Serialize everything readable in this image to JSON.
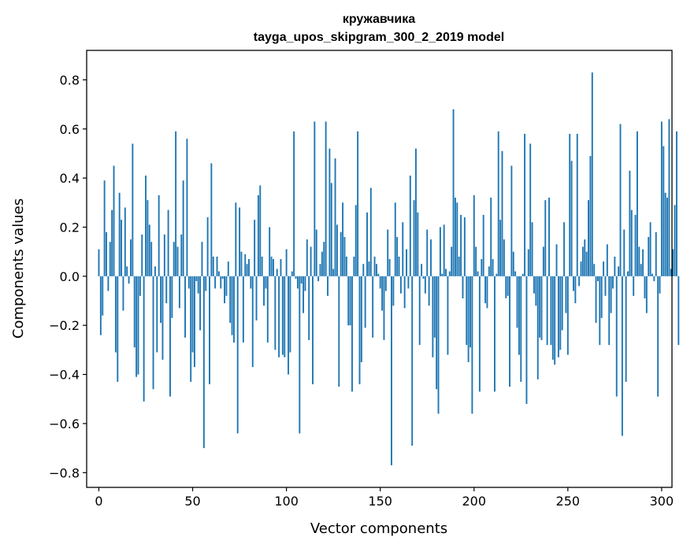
{
  "chart_data": {
    "type": "bar",
    "title_line1": "кружавчика",
    "title_line2": "tayga_upos_skipgram_300_2_2019 model",
    "xlabel": "Vector components",
    "ylabel": "Components values",
    "xlim": [
      -6.5,
      305.5
    ],
    "ylim": [
      -0.86,
      0.92
    ],
    "xticks": [
      0,
      50,
      100,
      150,
      200,
      250,
      300
    ],
    "xtick_labels": [
      "0",
      "50",
      "100",
      "150",
      "200",
      "250",
      "300"
    ],
    "yticks": [
      -0.8,
      -0.6,
      -0.4,
      -0.2,
      0.0,
      0.2,
      0.4,
      0.6,
      0.8
    ],
    "ytick_labels": [
      "−0.8",
      "−0.6",
      "−0.4",
      "−0.2",
      "0.0",
      "0.2",
      "0.4",
      "0.6",
      "0.8"
    ],
    "bar_color": "#1f77b4",
    "values": [
      0.11,
      -0.24,
      -0.16,
      0.39,
      0.18,
      -0.06,
      0.14,
      0.27,
      0.45,
      -0.31,
      -0.43,
      0.34,
      0.23,
      -0.14,
      0.28,
      0.04,
      -0.03,
      0.15,
      0.54,
      -0.29,
      -0.41,
      -0.4,
      -0.08,
      0.17,
      -0.51,
      0.41,
      0.31,
      0.21,
      0.14,
      -0.46,
      0.04,
      -0.31,
      0.33,
      -0.19,
      -0.34,
      0.17,
      -0.11,
      0.27,
      -0.49,
      -0.17,
      0.14,
      0.59,
      0.12,
      -0.13,
      0.17,
      0.39,
      -0.25,
      0.56,
      -0.05,
      -0.43,
      -0.31,
      -0.37,
      -0.02,
      -0.07,
      -0.22,
      0.14,
      -0.7,
      -0.06,
      0.24,
      -0.44,
      0.46,
      0.08,
      -0.05,
      0.08,
      0.02,
      -0.05,
      -0.01,
      -0.11,
      -0.08,
      0.06,
      -0.19,
      -0.24,
      -0.27,
      0.3,
      -0.64,
      0.28,
      0.1,
      -0.27,
      0.09,
      0.05,
      0.07,
      -0.05,
      -0.37,
      0.23,
      -0.18,
      0.33,
      0.37,
      0.08,
      -0.12,
      -0.05,
      -0.27,
      0.2,
      0.08,
      0.07,
      -0.3,
      0.03,
      -0.33,
      0.07,
      -0.32,
      -0.33,
      0.11,
      -0.4,
      -0.31,
      0.02,
      0.59,
      -0.01,
      -0.05,
      -0.64,
      -0.03,
      -0.15,
      -0.06,
      0.15,
      -0.26,
      0.12,
      -0.44,
      0.63,
      0.19,
      -0.02,
      0.05,
      0.1,
      0.14,
      0.63,
      -0.08,
      0.52,
      0.38,
      0.03,
      0.48,
      0.21,
      -0.45,
      0.18,
      0.3,
      0.16,
      0.08,
      -0.2,
      -0.2,
      -0.47,
      0.08,
      0.29,
      0.59,
      -0.44,
      -0.35,
      0.05,
      -0.21,
      0.26,
      0.06,
      0.36,
      -0.25,
      0.08,
      0.05,
      0.01,
      -0.05,
      -0.14,
      -0.26,
      -0.06,
      0.19,
      0.07,
      -0.77,
      -0.12,
      0.3,
      0.16,
      0.08,
      -0.07,
      0.22,
      -0.13,
      0.11,
      -0.05,
      0.41,
      -0.69,
      0.31,
      0.52,
      0.26,
      -0.28,
      0.05,
      -0.01,
      -0.07,
      0.19,
      -0.12,
      0.15,
      -0.33,
      -0.25,
      -0.46,
      -0.56,
      0.2,
      0.01,
      0.21,
      0.03,
      -0.32,
      0.02,
      0.12,
      0.68,
      0.32,
      0.3,
      0.08,
      0.25,
      -0.09,
      0.24,
      -0.28,
      -0.35,
      -0.29,
      -0.56,
      0.33,
      0.12,
      0.02,
      -0.47,
      0.07,
      0.25,
      -0.11,
      -0.13,
      0.04,
      0.32,
      0.07,
      -0.47,
      0.01,
      0.59,
      0.23,
      0.51,
      0.15,
      -0.09,
      -0.08,
      -0.45,
      0.45,
      0.1,
      0.02,
      -0.21,
      -0.32,
      -0.43,
      0.01,
      0.58,
      -0.52,
      0.11,
      0.54,
      0.22,
      -0.07,
      -0.12,
      -0.42,
      -0.25,
      -0.26,
      0.12,
      0.31,
      -0.28,
      0.32,
      -0.28,
      -0.34,
      -0.36,
      0.13,
      -0.33,
      -0.3,
      -0.22,
      0.22,
      -0.15,
      -0.32,
      0.58,
      0.47,
      -0.06,
      -0.11,
      0.58,
      -0.04,
      0.06,
      0.12,
      0.15,
      0.1,
      0.31,
      0.49,
      0.83,
      0.05,
      -0.19,
      -0.02,
      -0.28,
      -0.17,
      0.06,
      -0.08,
      0.13,
      -0.28,
      -0.15,
      -0.05,
      0.08,
      -0.49,
      0.04,
      0.62,
      -0.65,
      0.19,
      -0.43,
      0.02,
      0.43,
      0.27,
      -0.08,
      0.25,
      0.59,
      0.12,
      0.05,
      0.11,
      -0.09,
      -0.15,
      0.16,
      0.22,
      0.01,
      -0.02,
      0.18,
      -0.49,
      -0.07,
      0.63,
      0.53,
      0.34,
      0.32,
      0.64,
      0.03,
      0.11,
      0.29,
      0.59,
      -0.28
    ]
  }
}
